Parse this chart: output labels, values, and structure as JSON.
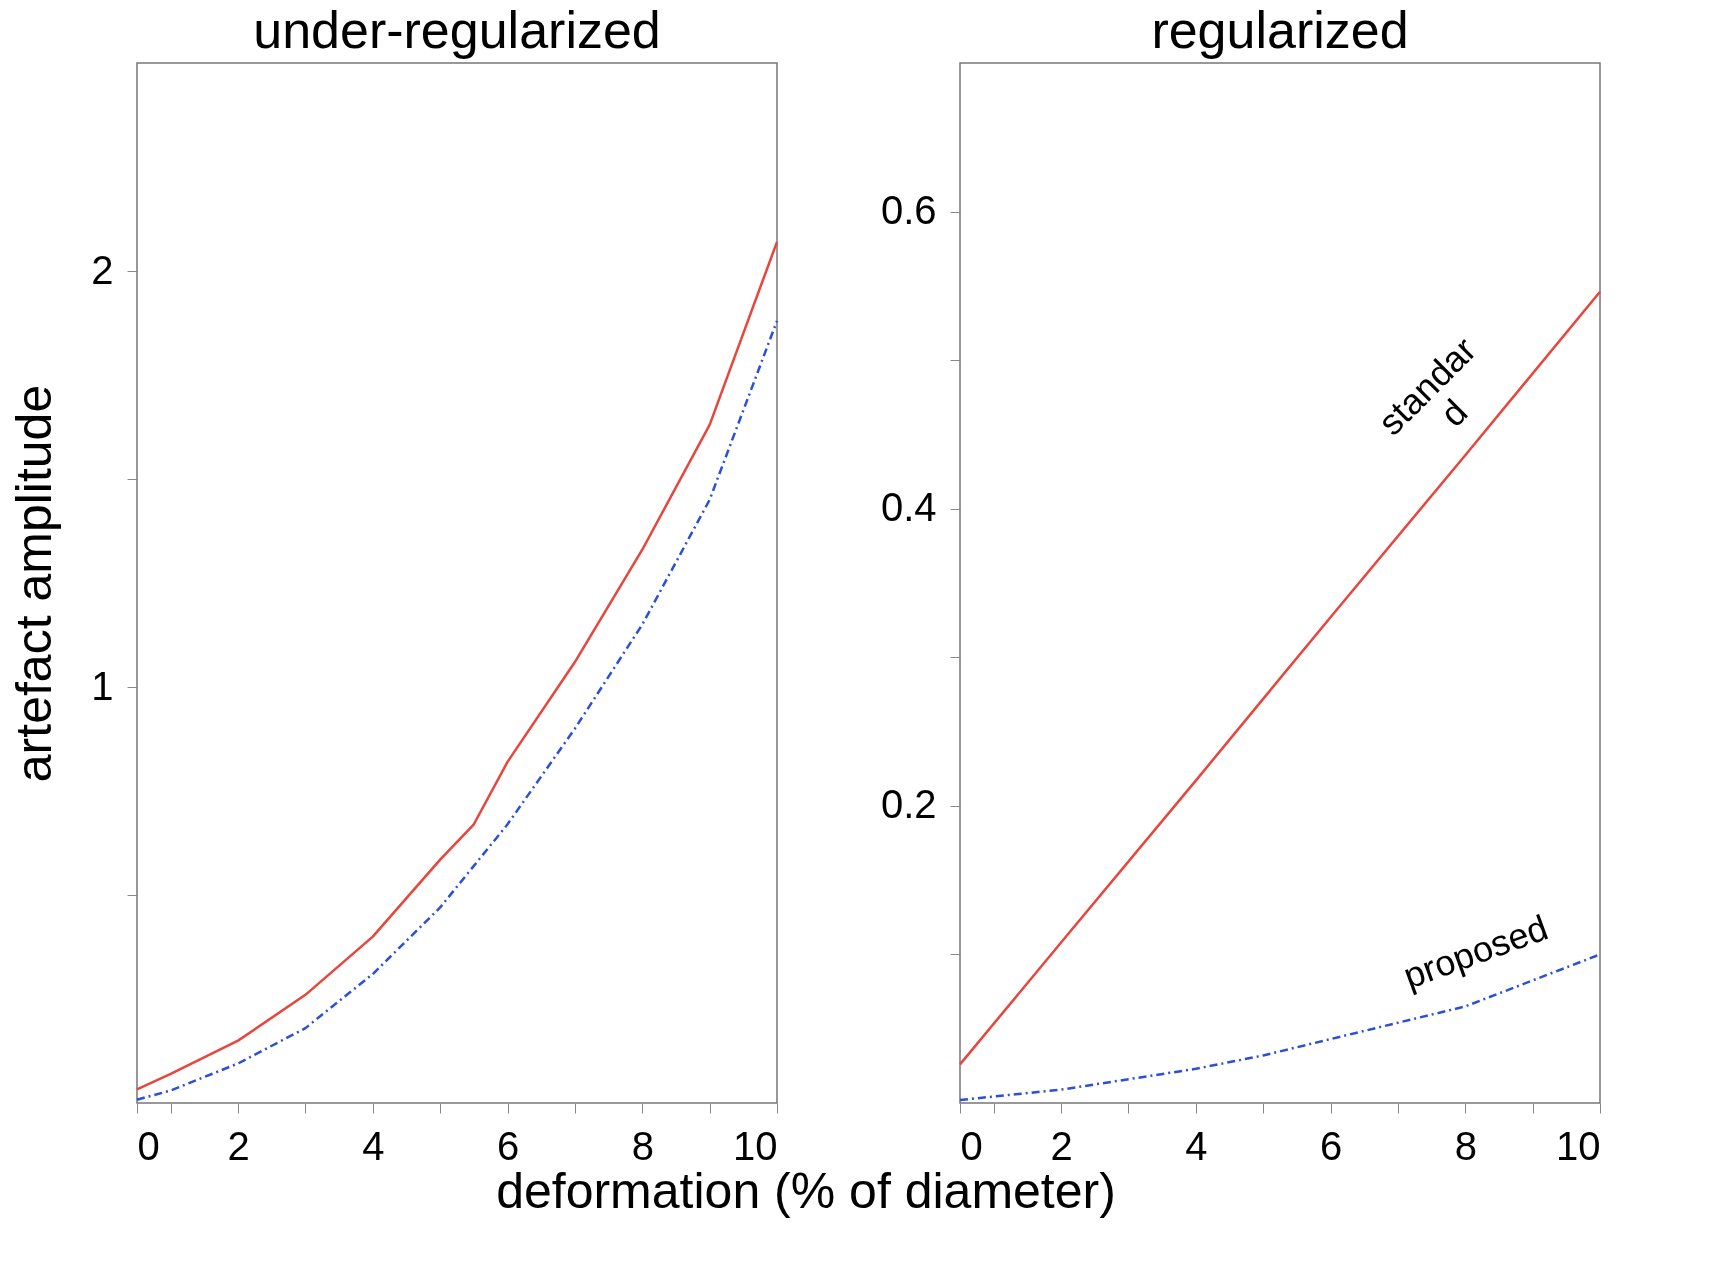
{
  "chart_data": [
    {
      "type": "line",
      "title": "under-regularized",
      "xlabel": "deformation (% of diameter)",
      "ylabel": "artefact amplitude",
      "x": [
        0.5,
        1,
        2,
        3,
        4,
        5,
        5.5,
        6,
        7,
        8,
        9,
        10
      ],
      "series": [
        {
          "color": "#e8453c",
          "line_style": "solid",
          "values": [
            0.033,
            0.07,
            0.15,
            0.26,
            0.4,
            0.585,
            0.67,
            0.82,
            1.06,
            1.33,
            1.63,
            2.07
          ]
        },
        {
          "color": "#2b4fd8",
          "line_style": "dashed",
          "values": [
            0.008,
            0.03,
            0.095,
            0.18,
            0.31,
            0.47,
            0.57,
            0.67,
            0.9,
            1.15,
            1.45,
            1.88
          ]
        }
      ],
      "xlim": [
        0.5,
        10
      ],
      "xticks": [
        {
          "value": 0.5,
          "label": "0"
        },
        {
          "value": 1,
          "label": null
        },
        2,
        {
          "value": 3,
          "label": null
        },
        4,
        {
          "value": 5,
          "label": null
        },
        6,
        {
          "value": 7,
          "label": null
        },
        8,
        {
          "value": 9,
          "label": null
        },
        10
      ],
      "ylim": [
        0,
        2.5
      ],
      "yticks": [
        {
          "value": 0.5,
          "label": null
        },
        1,
        {
          "value": 1.5,
          "label": null
        },
        2
      ],
      "grid": false,
      "marker": "none"
    },
    {
      "type": "line",
      "title": "regularized",
      "x": [
        0.5,
        2,
        4,
        5,
        6,
        8,
        10
      ],
      "series": [
        {
          "color": "#e8453c",
          "line_style": "solid",
          "values": [
            0.026,
            0.108,
            0.217,
            0.272,
            0.327,
            0.436,
            0.546
          ]
        },
        {
          "color": "#2b4fd8",
          "line_style": "dashed",
          "values": [
            0.002,
            0.009,
            0.023,
            0.032,
            0.043,
            0.065,
            0.1
          ]
        }
      ],
      "xlim": [
        0.5,
        10
      ],
      "xticks": [
        {
          "value": 0.5,
          "label": "0"
        },
        {
          "value": 1,
          "label": null
        },
        2,
        {
          "value": 3,
          "label": null
        },
        4,
        {
          "value": 5,
          "label": null
        },
        6,
        {
          "value": 7,
          "label": null
        },
        8,
        {
          "value": 9,
          "label": null
        },
        10
      ],
      "ylim": [
        0,
        0.7
      ],
      "yticks": [
        {
          "value": 0.1,
          "label": null
        },
        0.2,
        {
          "value": 0.3,
          "label": null
        },
        0.4,
        {
          "value": 0.5,
          "label": null
        },
        0.6
      ],
      "grid": false,
      "marker": "none",
      "annotations": [
        "standar\nd",
        "proposed"
      ]
    }
  ]
}
